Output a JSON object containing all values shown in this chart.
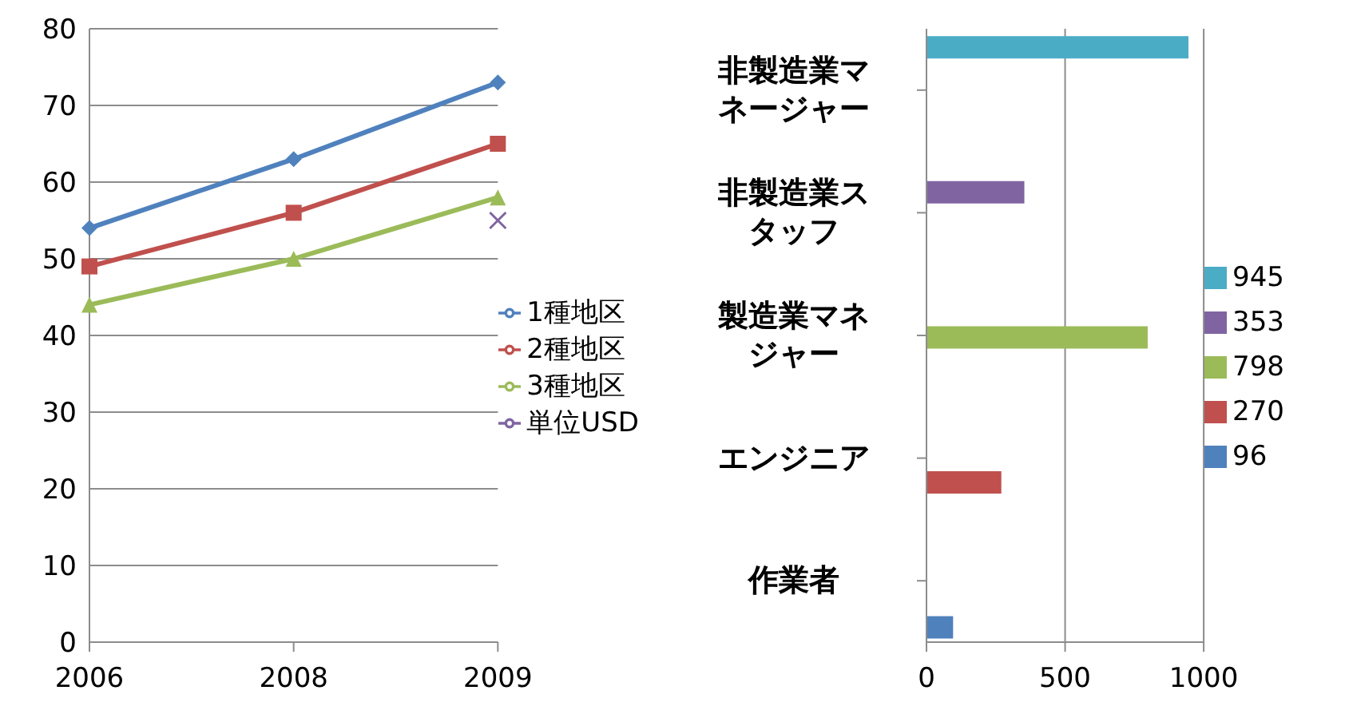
{
  "chart_data": [
    {
      "type": "line",
      "categories": [
        "2006",
        "2008",
        "2009"
      ],
      "ylim": [
        0,
        80
      ],
      "yticks": [
        0,
        10,
        20,
        30,
        40,
        50,
        60,
        70,
        80
      ],
      "grid": "y",
      "legend": "right",
      "series": [
        {
          "name": "1種地区",
          "color": "#4f81bd",
          "marker": "diamond",
          "values": [
            54,
            63,
            73
          ]
        },
        {
          "name": "2種地区",
          "color": "#c0504d",
          "marker": "square",
          "values": [
            49,
            56,
            65
          ]
        },
        {
          "name": "3種地区",
          "color": "#9bbb59",
          "marker": "triangle",
          "values": [
            44,
            50,
            58
          ]
        },
        {
          "name": "単位USD",
          "color": "#8064a2",
          "marker": "cross",
          "values": [
            null,
            null,
            55
          ]
        }
      ]
    },
    {
      "type": "bar",
      "orientation": "horizontal",
      "categories": [
        "非製造業マネージャー",
        "非製造業スタッフ",
        "製造業マネジャー",
        "エンジニア",
        "作業者"
      ],
      "xlim": [
        0,
        1000
      ],
      "xticks": [
        0,
        500,
        1000
      ],
      "grid": "x",
      "legend": "right",
      "series": [
        {
          "name": "945",
          "color": "#4bacc6",
          "values": [
            945,
            null,
            null,
            null,
            null
          ]
        },
        {
          "name": "353",
          "color": "#8064a2",
          "values": [
            null,
            353,
            null,
            null,
            null
          ]
        },
        {
          "name": "798",
          "color": "#9bbb59",
          "values": [
            null,
            null,
            798,
            null,
            null
          ]
        },
        {
          "name": "270",
          "color": "#c0504d",
          "values": [
            null,
            null,
            null,
            270,
            null
          ]
        },
        {
          "name": "96",
          "color": "#4f81bd",
          "values": [
            null,
            null,
            null,
            null,
            96
          ]
        }
      ]
    }
  ]
}
